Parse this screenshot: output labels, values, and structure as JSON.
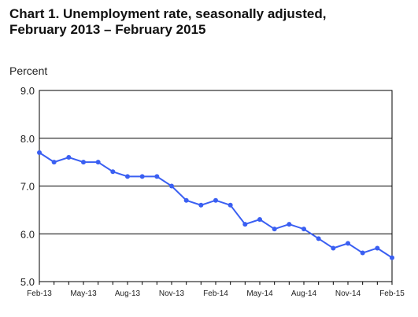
{
  "title_line1": "Chart 1. Unemployment rate, seasonally adjusted,",
  "title_line2": "February 2013 – February 2015",
  "chart_data": {
    "type": "line",
    "title": "Chart 1. Unemployment rate, seasonally adjusted, February 2013 – February 2015",
    "ylabel": "Percent",
    "xlabel": "",
    "ylim": [
      5.0,
      9.0
    ],
    "yticks": [
      "9.0",
      "8.0",
      "7.0",
      "6.0",
      "5.0"
    ],
    "ytick_values": [
      9.0,
      8.0,
      7.0,
      6.0,
      5.0
    ],
    "xtick_labels": [
      "Feb-13",
      "May-13",
      "Aug-13",
      "Nov-13",
      "Feb-14",
      "May-14",
      "Aug-14",
      "Nov-14",
      "Feb-15"
    ],
    "x": [
      "Feb-13",
      "Mar-13",
      "Apr-13",
      "May-13",
      "Jun-13",
      "Jul-13",
      "Aug-13",
      "Sep-13",
      "Oct-13",
      "Nov-13",
      "Dec-13",
      "Jan-14",
      "Feb-14",
      "Mar-14",
      "Apr-14",
      "May-14",
      "Jun-14",
      "Jul-14",
      "Aug-14",
      "Sep-14",
      "Oct-14",
      "Nov-14",
      "Dec-14",
      "Jan-15",
      "Feb-15"
    ],
    "series": [
      {
        "values": [
          7.7,
          7.5,
          7.6,
          7.5,
          7.5,
          7.3,
          7.2,
          7.2,
          7.2,
          7.0,
          6.7,
          6.6,
          6.7,
          6.6,
          6.2,
          6.3,
          6.1,
          6.2,
          6.1,
          5.9,
          5.7,
          5.8,
          5.6,
          5.7,
          5.5
        ],
        "color": "#3a5ff2"
      }
    ],
    "grid": "horizontal"
  }
}
